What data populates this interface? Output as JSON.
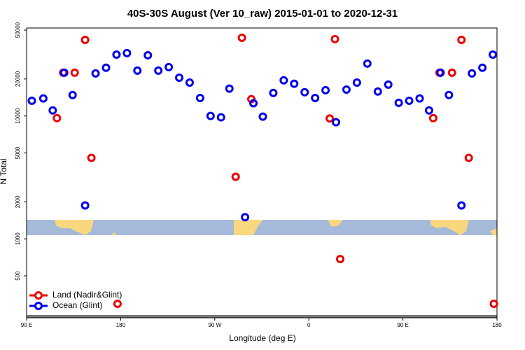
{
  "chart_data": {
    "type": "scatter",
    "title": "40S-30S August (Ver 10_raw)   2015-01-01 to 2020-12-31",
    "xlabel": "Longitude (deg E)",
    "ylabel": "N Total",
    "xlim": [
      90,
      540
    ],
    "ylim": [
      240,
      52000
    ],
    "log_y": true,
    "legend": "lower left",
    "xticks": [
      {
        "value": 90,
        "label": "90 E"
      },
      180,
      {
        "value": 270,
        "label": "90 W"
      },
      {
        "value": 360,
        "label": "0"
      },
      {
        "value": 450,
        "label": "90 E"
      },
      {
        "value": 540,
        "label": "180"
      }
    ],
    "yticks": [
      500,
      1000,
      2000,
      5000,
      10000,
      20000,
      50000
    ],
    "series": [
      {
        "name": "Land (Nadir&Glint)",
        "color": "#ee0000",
        "x": [
          119,
          125,
          136,
          146,
          152,
          177,
          290,
          296,
          305,
          380,
          385,
          390,
          479,
          485,
          497,
          506,
          513,
          537
        ],
        "values": [
          9600,
          22500,
          22500,
          41600,
          4560,
          296,
          3200,
          43300,
          13700,
          9550,
          42200,
          684,
          9600,
          22500,
          22500,
          41600,
          4560,
          296
        ]
      },
      {
        "name": "Ocean (Glint)",
        "color": "#0000ee",
        "x": [
          95,
          106,
          115,
          126,
          134,
          146,
          156,
          166,
          176,
          186,
          196,
          206,
          216,
          226,
          236,
          246,
          256,
          266,
          276,
          284,
          299,
          307,
          316,
          326,
          336,
          346,
          356,
          366,
          376,
          386,
          396,
          406,
          416,
          426,
          436,
          446,
          456,
          466,
          475,
          486,
          494,
          506,
          516,
          526,
          536
        ],
        "values": [
          13300,
          13900,
          11100,
          22500,
          14800,
          1870,
          22200,
          24700,
          31600,
          32500,
          23400,
          31200,
          23400,
          25000,
          20500,
          18700,
          14000,
          10000,
          9750,
          16700,
          1500,
          12700,
          9870,
          15400,
          19500,
          18300,
          15600,
          14000,
          16200,
          8890,
          16400,
          18700,
          26700,
          15800,
          18000,
          12800,
          13300,
          13900,
          11100,
          22500,
          14800,
          1870,
          22200,
          24700,
          31600
        ]
      }
    ]
  }
}
